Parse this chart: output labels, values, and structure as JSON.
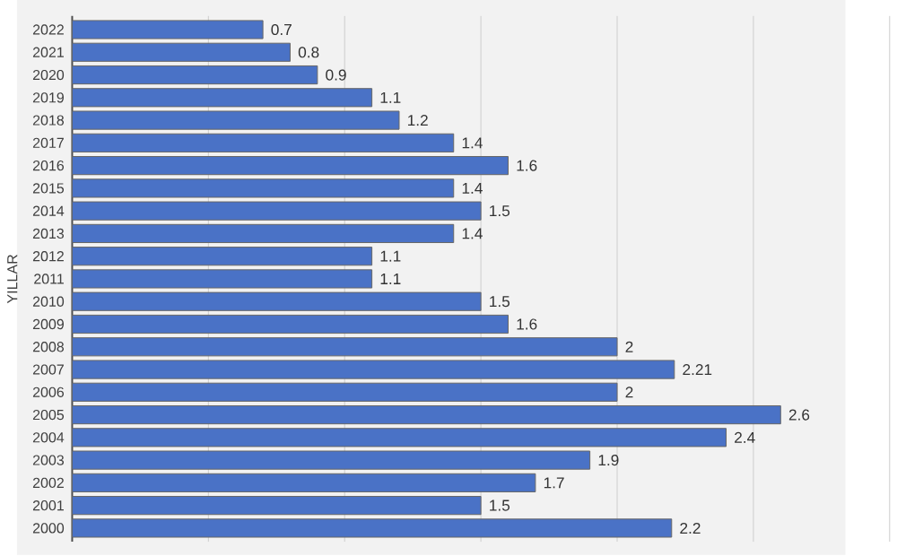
{
  "chart_data": {
    "type": "bar",
    "orientation": "horizontal",
    "ylabel": "YILLAR",
    "categories": [
      "2022",
      "2021",
      "2020",
      "2019",
      "2018",
      "2017",
      "2016",
      "2015",
      "2014",
      "2013",
      "2012",
      "2011",
      "2010",
      "2009",
      "2008",
      "2007",
      "2006",
      "2005",
      "2004",
      "2003",
      "2002",
      "2001",
      "2000"
    ],
    "values": [
      0.7,
      0.8,
      0.9,
      1.1,
      1.2,
      1.4,
      1.6,
      1.4,
      1.5,
      1.4,
      1.1,
      1.1,
      1.5,
      1.6,
      2,
      2.21,
      2,
      2.6,
      2.4,
      1.9,
      1.7,
      1.5,
      2.2
    ],
    "color": "#4a72c6",
    "data_labels": true,
    "grid": "x",
    "relative": false,
    "xlim": [
      0,
      3
    ],
    "xticks": [
      {
        "value": 0.5,
        "label": null
      },
      {
        "value": 1,
        "label": null
      },
      {
        "value": 1.5,
        "label": null
      },
      {
        "value": 2,
        "label": null
      },
      {
        "value": 2.5,
        "label": null
      },
      {
        "value": 3,
        "label": null
      }
    ],
    "tick_labels": "y"
  }
}
